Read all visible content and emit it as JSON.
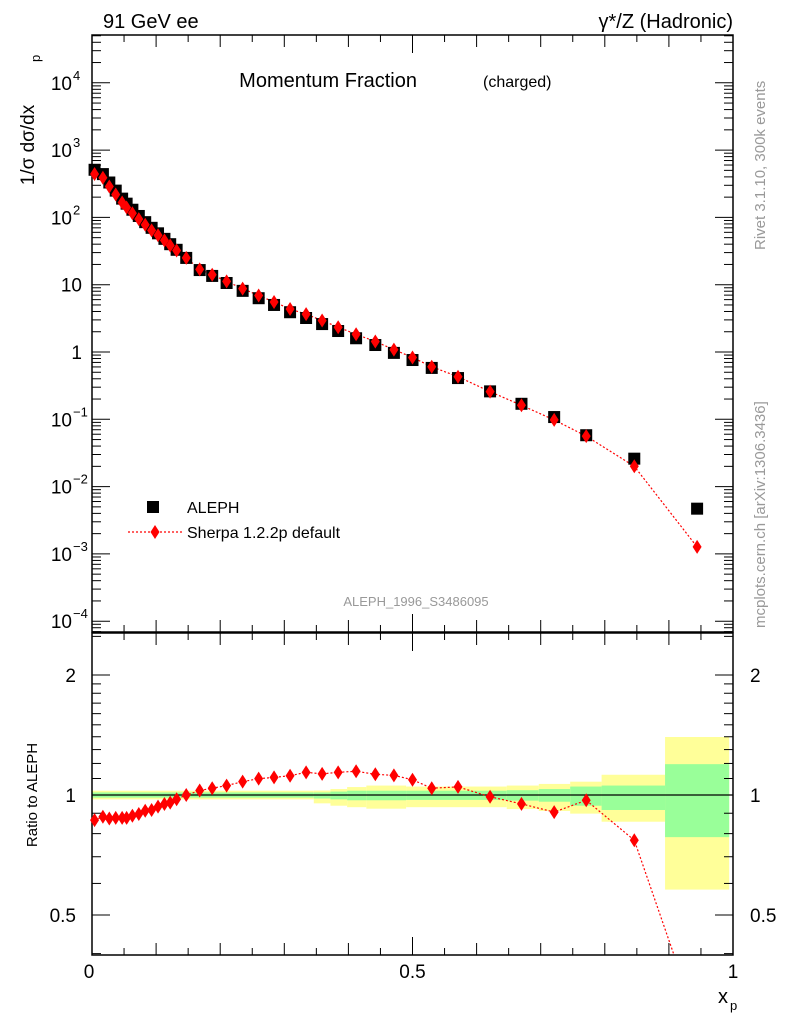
{
  "header": {
    "left": "91 GeV ee",
    "right": "γ*/Z (Hadronic)"
  },
  "side": {
    "rivet": "Rivet 3.1.10,  300k events",
    "mcplots": "mcplots.cern.ch [arXiv:1306.3436]"
  },
  "colors": {
    "data": "#000000",
    "mc": "#ff0000",
    "stat_band": "#99ff99",
    "total_band": "#ffff99"
  },
  "chart_data": {
    "type": "scatter",
    "title": "Momentum Fraction",
    "title_sub": "(charged)",
    "analysis": "ALEPH_1996_S3486095",
    "ylabel": "1/σ dσ/dx",
    "ylabel_sub": "p",
    "ratio_ylabel": "Ratio to ALEPH",
    "xlabel": "x",
    "xlabel_sub": "p",
    "xlim": [
      0,
      1
    ],
    "ylim": [
      7e-05,
      50000
    ],
    "yscale": "log",
    "ratio_ylim": [
      0.397,
      2.55
    ],
    "legend_position": "middle-left",
    "x_ticks": [
      "0",
      "0.5",
      "1"
    ],
    "y_ticks": [
      {
        "base": "10",
        "exp": "4"
      },
      {
        "base": "10",
        "exp": "3"
      },
      {
        "base": "10",
        "exp": "2"
      },
      {
        "base": "10",
        "exp": ""
      },
      {
        "base": "1",
        "exp": ""
      },
      {
        "base": "10",
        "exp": "−1"
      },
      {
        "base": "10",
        "exp": "−2"
      },
      {
        "base": "10",
        "exp": "−3"
      },
      {
        "base": "10",
        "exp": "−4"
      }
    ],
    "ratio_ticks": [
      "2",
      "1",
      "0.5"
    ],
    "ratio_ticks_right": [
      "2",
      "1",
      "0.5"
    ],
    "series": [
      {
        "name": "ALEPH",
        "marker": "square",
        "x": [
          0.004,
          0.017,
          0.027,
          0.037,
          0.047,
          0.054,
          0.063,
          0.073,
          0.083,
          0.093,
          0.103,
          0.113,
          0.122,
          0.132,
          0.147,
          0.168,
          0.1875,
          0.21,
          0.235,
          0.26,
          0.284,
          0.309,
          0.334,
          0.359,
          0.384,
          0.412,
          0.442,
          0.471,
          0.5,
          0.53,
          0.571,
          0.621,
          0.67,
          0.721,
          0.771,
          0.846,
          0.944
        ],
        "y": [
          510,
          440,
          330,
          250,
          190,
          160,
          130,
          105,
          85,
          70,
          58,
          48,
          40,
          33,
          25,
          16.5,
          13.5,
          10.6,
          8.1,
          6.3,
          5.0,
          3.9,
          3.2,
          2.6,
          2.05,
          1.6,
          1.27,
          0.97,
          0.76,
          0.58,
          0.41,
          0.26,
          0.17,
          0.108,
          0.058,
          0.026,
          0.0047
        ]
      },
      {
        "name": "Sherpa 1.2.2p default",
        "marker": "diamond",
        "line": "dotted",
        "ratio": [
          0.865,
          0.882,
          0.873,
          0.876,
          0.876,
          0.876,
          0.887,
          0.896,
          0.913,
          0.917,
          0.935,
          0.949,
          0.957,
          0.976,
          1.0,
          1.026,
          1.04,
          1.056,
          1.08,
          1.099,
          1.107,
          1.118,
          1.14,
          1.13,
          1.14,
          1.147,
          1.127,
          1.12,
          1.092,
          1.04,
          1.048,
          0.99,
          0.95,
          0.906,
          0.97,
          0.77,
          0.27
        ]
      }
    ],
    "ratio_bands": [
      {
        "x": [
          0.0,
          0.346
        ],
        "total": [
          0.975,
          1.025
        ],
        "stat": [
          0.985,
          1.015
        ]
      },
      {
        "x": [
          0.346,
          0.372
        ],
        "total": [
          0.953,
          1.026
        ],
        "stat": [
          0.98,
          1.015
        ]
      },
      {
        "x": [
          0.372,
          0.398
        ],
        "total": [
          0.94,
          1.035
        ],
        "stat": [
          0.975,
          1.02
        ]
      },
      {
        "x": [
          0.398,
          0.428
        ],
        "total": [
          0.932,
          1.047
        ],
        "stat": [
          0.97,
          1.025
        ]
      },
      {
        "x": [
          0.428,
          0.49
        ],
        "total": [
          0.924,
          1.056
        ],
        "stat": [
          0.97,
          1.025
        ]
      },
      {
        "x": [
          0.49,
          0.647
        ],
        "total": [
          0.932,
          1.05
        ],
        "stat": [
          0.972,
          1.025
        ]
      },
      {
        "x": [
          0.647,
          0.697
        ],
        "total": [
          0.922,
          1.056
        ],
        "stat": [
          0.968,
          1.028
        ]
      },
      {
        "x": [
          0.697,
          0.746
        ],
        "total": [
          0.912,
          1.066
        ],
        "stat": [
          0.962,
          1.035
        ]
      },
      {
        "x": [
          0.746,
          0.795
        ],
        "total": [
          0.898,
          1.08
        ],
        "stat": [
          0.94,
          1.05
        ]
      },
      {
        "x": [
          0.795,
          0.894
        ],
        "total": [
          0.857,
          1.124
        ],
        "stat": [
          0.917,
          1.056
        ]
      },
      {
        "x": [
          0.894,
          0.994
        ],
        "total": [
          0.579,
          1.398
        ],
        "stat": [
          0.784,
          1.195
        ]
      }
    ]
  }
}
